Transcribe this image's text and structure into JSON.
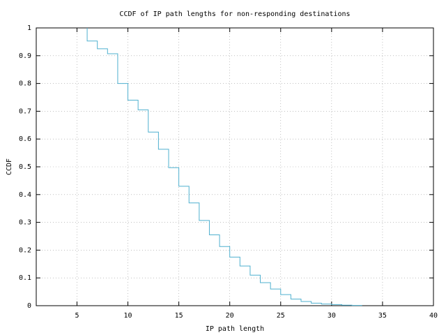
{
  "chart_data": {
    "type": "step",
    "title": "CCDF of IP path lengths for non-responding destinations",
    "xlabel": "IP path length",
    "ylabel": "CCDF",
    "x": [
      6,
      7,
      8,
      9,
      10,
      11,
      12,
      13,
      14,
      15,
      16,
      17,
      18,
      19,
      20,
      21,
      22,
      23,
      24,
      25,
      26,
      27,
      28,
      29,
      30,
      31,
      32,
      33
    ],
    "values": [
      1,
      0.953,
      0.925,
      0.907,
      0.8,
      0.74,
      0.705,
      0.625,
      0.563,
      0.497,
      0.43,
      0.37,
      0.307,
      0.255,
      0.213,
      0.175,
      0.143,
      0.11,
      0.083,
      0.06,
      0.04,
      0.024,
      0.015,
      0.009,
      0.006,
      0.004,
      0.002,
      0.001
    ],
    "color": "#4fb0cf",
    "xlim": [
      1,
      40
    ],
    "xticks": [
      5,
      10,
      15,
      20,
      25,
      30,
      35,
      40
    ],
    "ylim": [
      0,
      1
    ],
    "yticks": [
      0,
      0.1,
      0.2,
      0.3,
      0.4,
      0.5,
      0.6,
      0.7,
      0.8,
      0.9,
      1
    ],
    "grid": true
  }
}
